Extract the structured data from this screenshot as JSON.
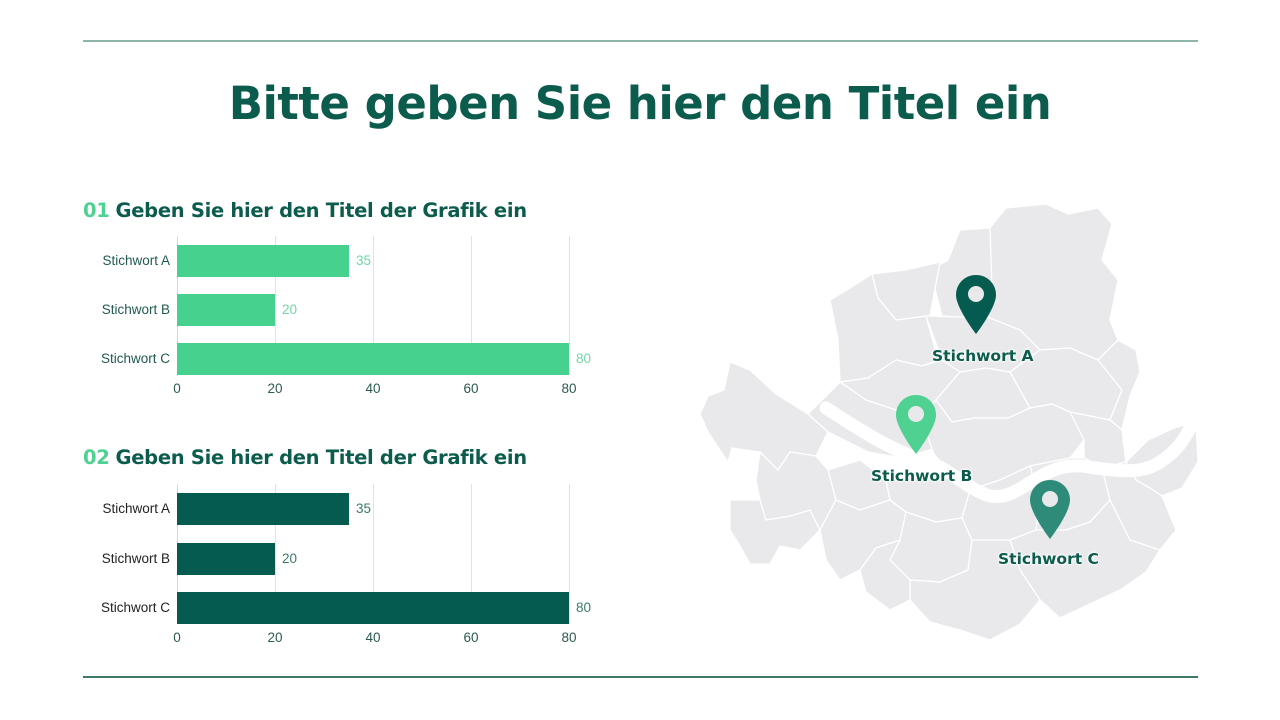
{
  "slide": {
    "title": "Bitte geben Sie hier den Titel ein",
    "rule_colors": {
      "top": "#8fb5a8",
      "bottom": "#3d7a6a"
    }
  },
  "charts": [
    {
      "number": "01",
      "title": "Geben Sie hier den Titel der Grafik ein",
      "bar_color": "#47d18e",
      "value_label_color": "#6fd7a6",
      "category_label_color": "#1f5a50"
    },
    {
      "number": "02",
      "title": "Geben Sie hier den Titel der Grafik ein",
      "bar_color": "#065b50",
      "value_label_color": "#3b7a6c",
      "category_label_color": "#222222"
    }
  ],
  "chart_data": [
    {
      "type": "bar",
      "orientation": "horizontal",
      "title": "01 Geben Sie hier den Titel der Grafik ein",
      "categories": [
        "Stichwort A",
        "Stichwort B",
        "Stichwort C"
      ],
      "values": [
        35,
        20,
        80
      ],
      "value_labels": [
        "35",
        "20",
        "80"
      ],
      "xlabel": "",
      "ylabel": "",
      "xlim": [
        0,
        80
      ],
      "xticks": [
        "0",
        "20",
        "40",
        "60",
        "80"
      ],
      "grid": true,
      "legend": null,
      "color": "#47d18e"
    },
    {
      "type": "bar",
      "orientation": "horizontal",
      "title": "02 Geben Sie hier den Titel der Grafik ein",
      "categories": [
        "Stichwort A",
        "Stichwort B",
        "Stichwort C"
      ],
      "values": [
        35,
        20,
        80
      ],
      "value_labels": [
        "35",
        "20",
        "80"
      ],
      "xlabel": "",
      "ylabel": "",
      "xlim": [
        0,
        80
      ],
      "xticks": [
        "0",
        "20",
        "40",
        "60",
        "80"
      ],
      "grid": true,
      "legend": null,
      "color": "#065b50"
    }
  ],
  "map": {
    "fill_color": "#e9e9ec",
    "border_color": "#ffffff",
    "markers": [
      {
        "label": "Stichwort A",
        "color": "#065b50",
        "icon": "map-pin-icon"
      },
      {
        "label": "Stichwort B",
        "color": "#4ed191",
        "icon": "map-pin-icon"
      },
      {
        "label": "Stichwort C",
        "color": "#2e8b7a",
        "icon": "map-pin-icon"
      }
    ]
  }
}
